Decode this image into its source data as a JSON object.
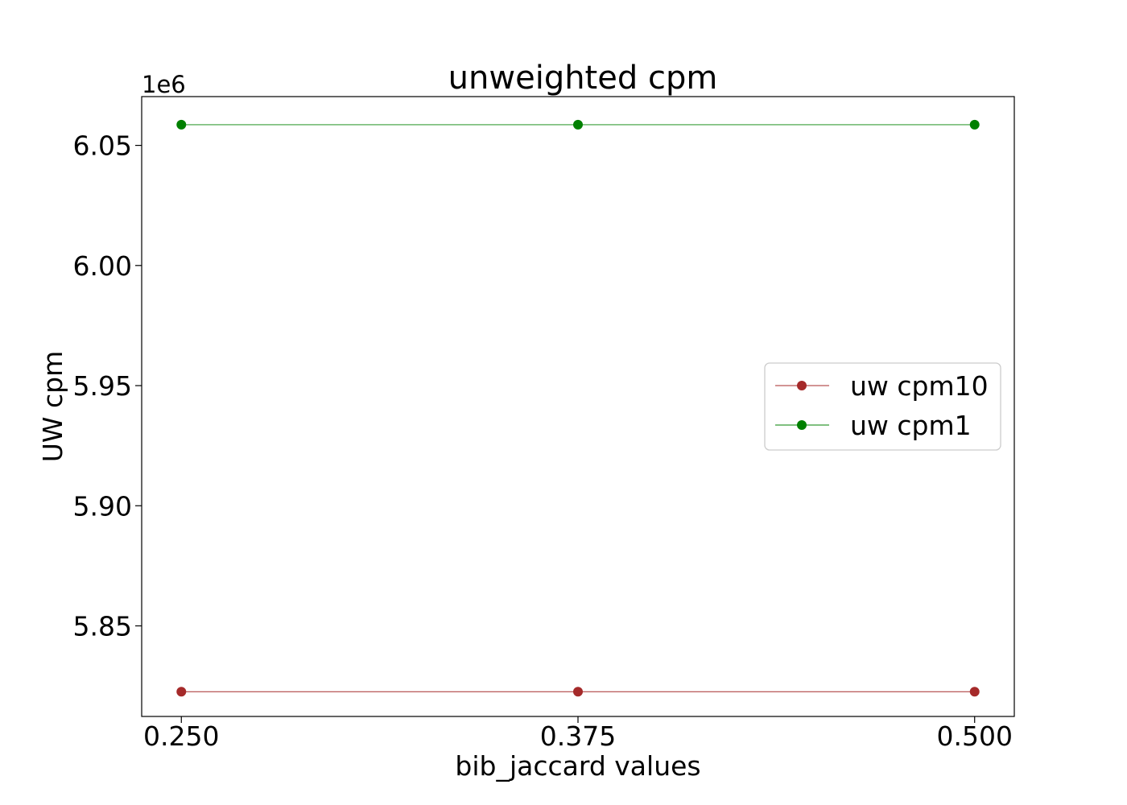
{
  "chart_data": {
    "type": "line",
    "title": "unweighted cpm",
    "xlabel": "bib_jaccard values",
    "ylabel": "UW cpm",
    "offset_label": "1e6",
    "x": [
      0.25,
      0.375,
      0.5
    ],
    "x_tick_labels": [
      "0.250",
      "0.375",
      "0.500"
    ],
    "xlim": [
      0.2375,
      0.5125
    ],
    "y_ticks": [
      5.85,
      5.9,
      5.95,
      6.0,
      6.05
    ],
    "y_tick_labels": [
      "5.85",
      "5.90",
      "5.95",
      "6.00",
      "6.05"
    ],
    "ylim": [
      5.8123,
      6.0703
    ],
    "y_scale_note": "values in units of 1e6",
    "grid": false,
    "legend_position": "center-right",
    "series": [
      {
        "name": "uw cpm10",
        "color": "#a52a2a",
        "values": [
          5.8226,
          5.8226,
          5.8226
        ]
      },
      {
        "name": "uw cpm1",
        "color": "#008000",
        "values": [
          6.0586,
          6.0586,
          6.0586
        ]
      }
    ]
  }
}
